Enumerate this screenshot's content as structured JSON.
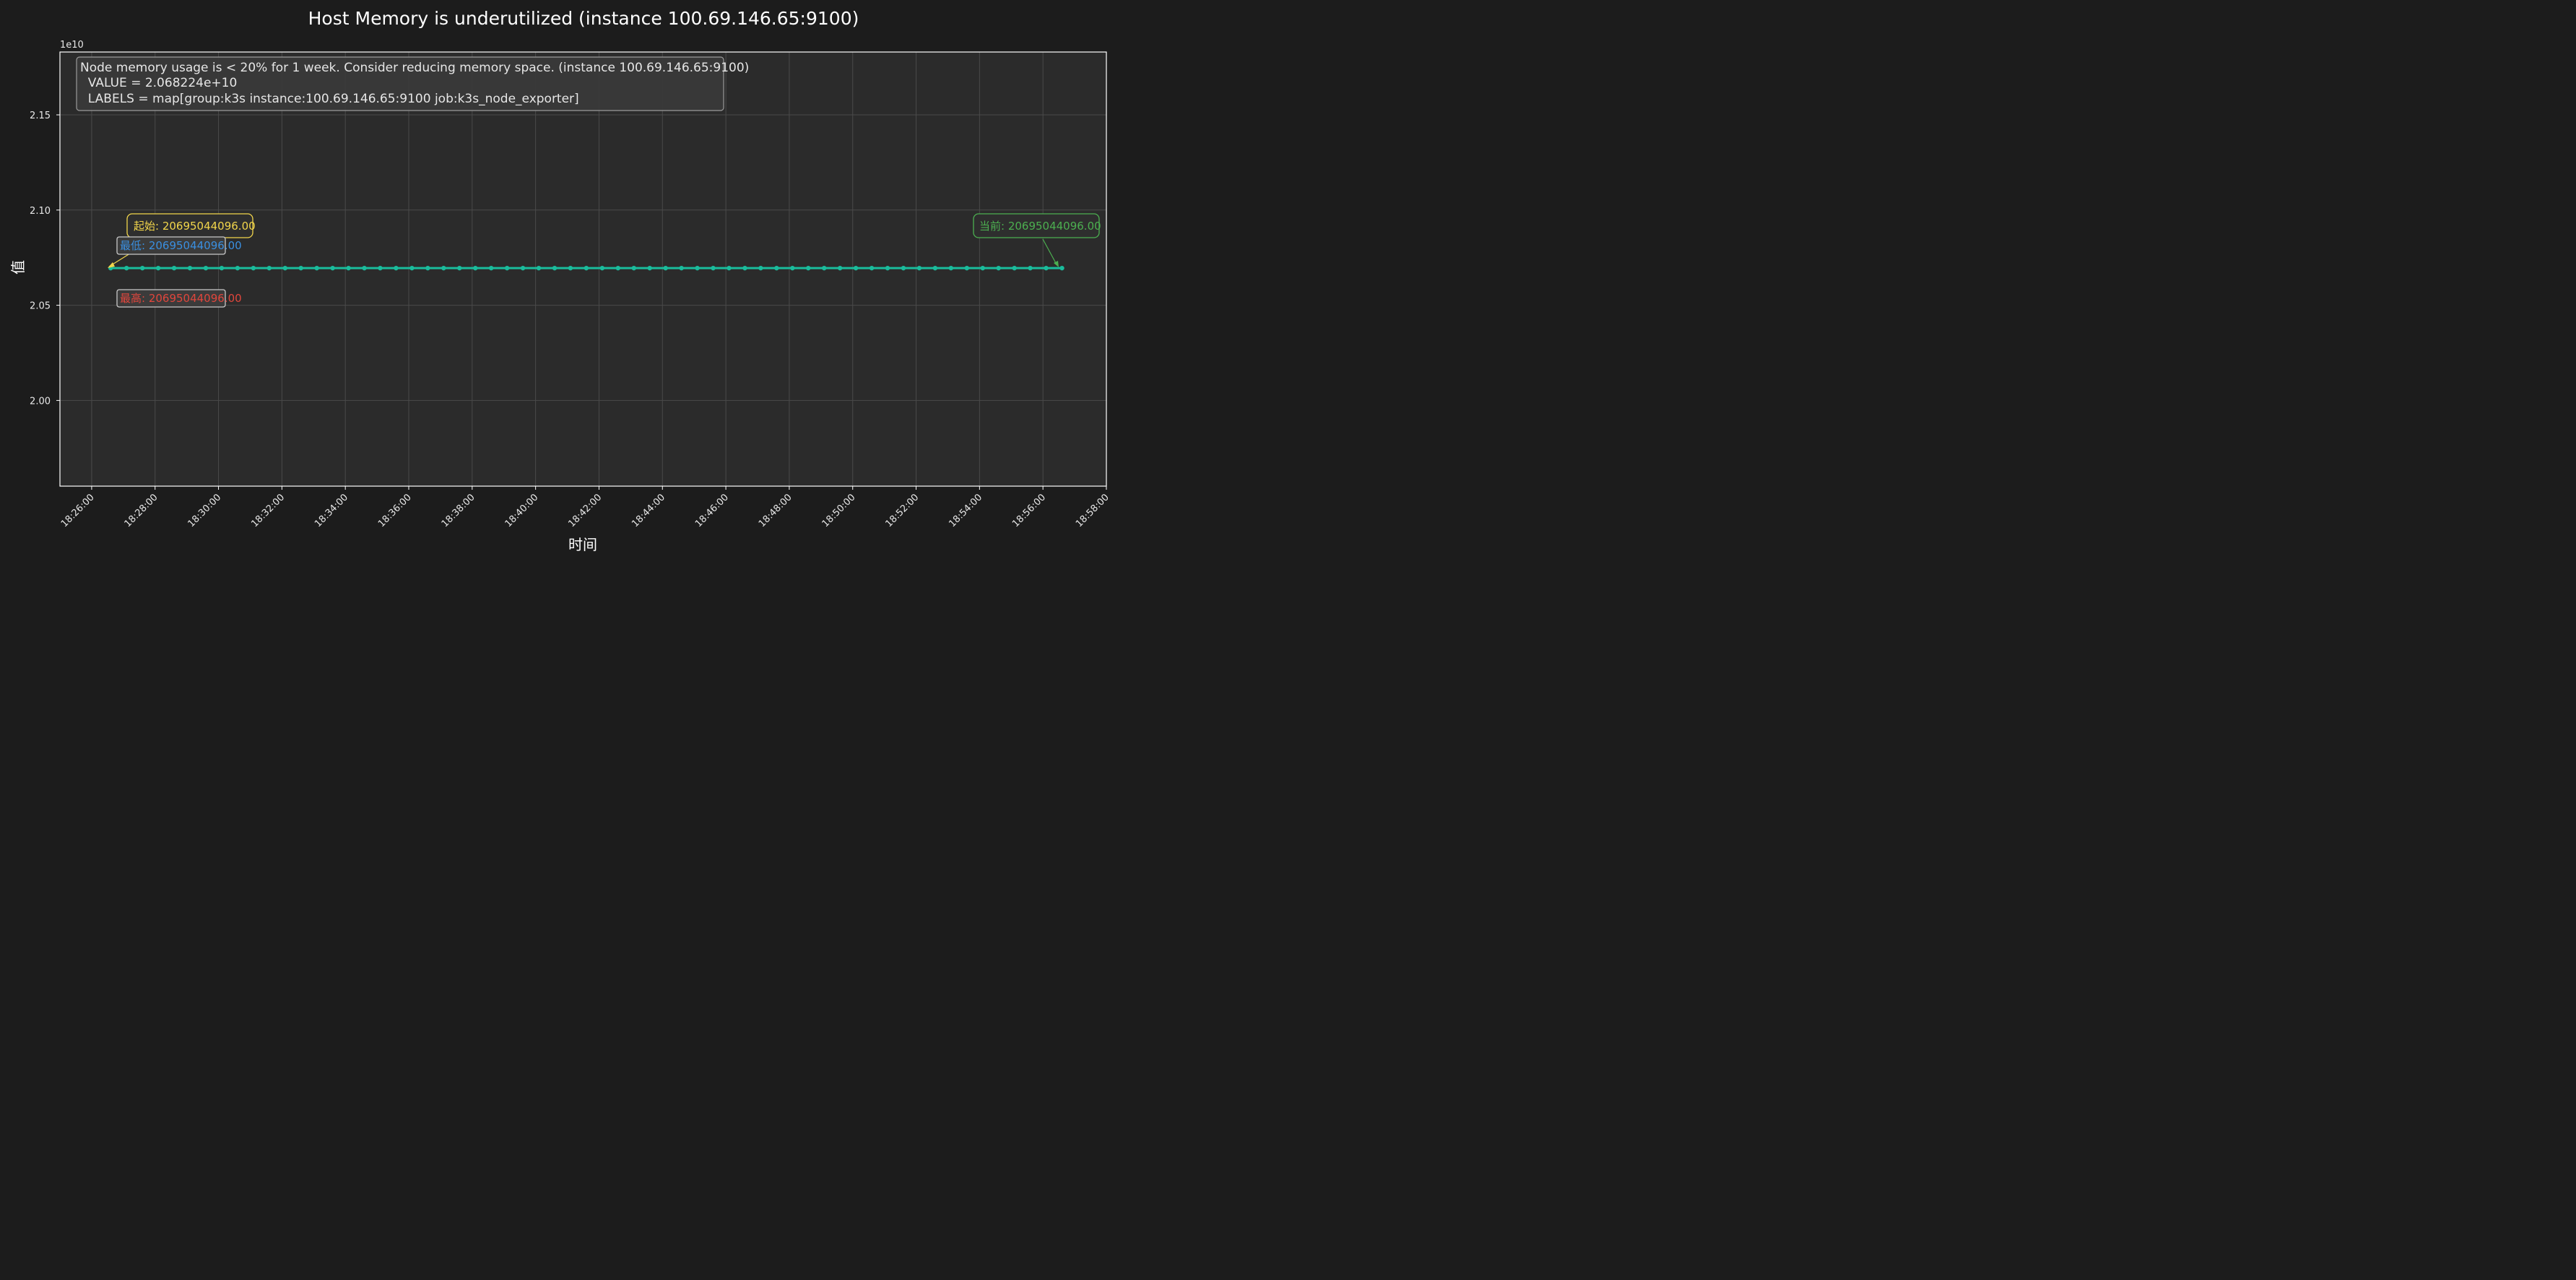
{
  "chart_data": {
    "type": "line",
    "title": "Host Memory is underutilized (instance 100.69.146.65:9100)",
    "xlabel": "时间",
    "ylabel": "值",
    "y_offset_label": "1e10",
    "x_range": [
      "18:25:00",
      "18:58:00"
    ],
    "ylim": [
      19.55,
      21.83
    ],
    "y_ticks": [
      20.0,
      20.5,
      21.0,
      21.5
    ],
    "y_tick_labels": [
      "2.00",
      "2.05",
      "2.10",
      "2.15"
    ],
    "x_ticks": [
      "18:26:00",
      "18:28:00",
      "18:30:00",
      "18:32:00",
      "18:34:00",
      "18:36:00",
      "18:38:00",
      "18:40:00",
      "18:42:00",
      "18:44:00",
      "18:46:00",
      "18:48:00",
      "18:50:00",
      "18:52:00",
      "18:54:00",
      "18:56:00",
      "18:58:00"
    ],
    "grid": true,
    "series": [
      {
        "start": "18:26:36",
        "end": "18:56:36",
        "step_seconds": 30,
        "constant_value": 20695044096.0,
        "color": "#1abc9c",
        "marker": "circle"
      }
    ],
    "info_box": {
      "lines": [
        "Node memory usage is < 20% for 1 week. Consider reducing memory space. (instance 100.69.146.65:9100)",
        "  VALUE = 2.068224e+10",
        "  LABELS = map[group:k3s instance:100.69.146.65:9100 job:k3s_node_exporter]"
      ]
    },
    "annotations": {
      "start": {
        "label": "起始: 20695044096.00",
        "color": "#f1d54b"
      },
      "min": {
        "label": "最低: 20695044096.00",
        "color": "#3a8fe0"
      },
      "max": {
        "label": "最高: 20695044096.00",
        "color": "#e0463c"
      },
      "current": {
        "label": "当前: 20695044096.00",
        "color": "#4caf50"
      }
    },
    "colors": {
      "background": "#1c1c1c",
      "plot_background": "#2b2b2b",
      "grid": "#4a4a4a",
      "axis": "#ffffff"
    }
  }
}
